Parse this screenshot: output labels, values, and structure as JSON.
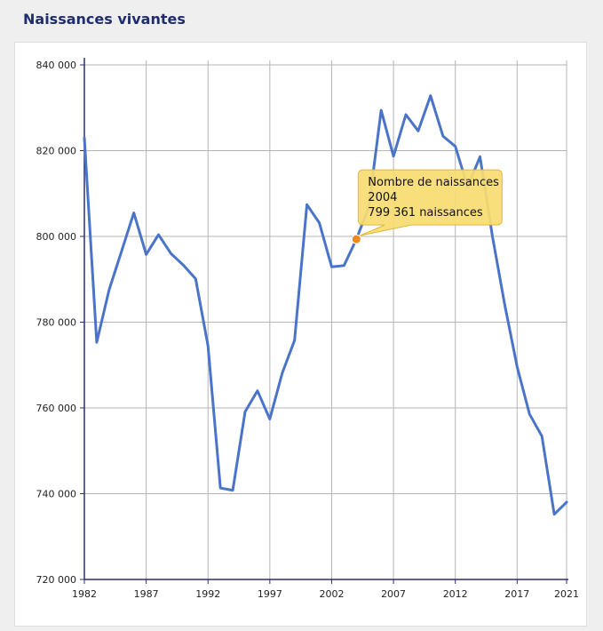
{
  "title": "Naissances vivantes",
  "colors": {
    "line": "#4a74c9",
    "grid": "#b5b5b5",
    "axis": "#2b2e7a",
    "highlight": "#ee8a1b",
    "tooltip_bg": "#f7dc70",
    "tooltip_border": "#e0b833"
  },
  "chart_data": {
    "type": "line",
    "title": "Naissances vivantes",
    "xlabel": "",
    "ylabel": "",
    "x": [
      1982,
      1983,
      1984,
      1985,
      1986,
      1987,
      1988,
      1989,
      1990,
      1991,
      1992,
      1993,
      1994,
      1995,
      1996,
      1997,
      1998,
      1999,
      2000,
      2001,
      2002,
      2003,
      2004,
      2005,
      2006,
      2007,
      2008,
      2009,
      2010,
      2011,
      2012,
      2013,
      2014,
      2015,
      2016,
      2017,
      2018,
      2019,
      2020,
      2021
    ],
    "series": [
      {
        "name": "Nombre de naissances",
        "values": [
          823000,
          775300,
          787500,
          796500,
          805500,
          795800,
          800400,
          796000,
          793300,
          790100,
          774500,
          741300,
          740800,
          759100,
          764000,
          757400,
          768100,
          775800,
          807400,
          803200,
          792900,
          793200,
          799361,
          806800,
          829400,
          818700,
          828400,
          824600,
          832800,
          823400,
          821000,
          811500,
          818600,
          800000,
          784000,
          769600,
          758600,
          753400,
          735200,
          738000
        ]
      }
    ],
    "xlim": [
      1982,
      2021
    ],
    "ylim": [
      720000,
      840000
    ],
    "x_ticks": [
      1982,
      1987,
      1992,
      1997,
      2002,
      2007,
      2012,
      2017,
      2021
    ],
    "x_tick_labels": [
      "1982",
      "1987",
      "1992",
      "1997",
      "2002",
      "2007",
      "2012",
      "2017",
      "2021"
    ],
    "y_ticks": [
      720000,
      740000,
      760000,
      780000,
      800000,
      820000,
      840000
    ],
    "y_tick_labels": [
      "720 000",
      "740 000",
      "760 000",
      "780 000",
      "800 000",
      "820 000",
      "840 000"
    ],
    "grid": true,
    "tooltip": {
      "index": 22,
      "line1": "Nombre de naissances",
      "line2": "2004",
      "line3": "799 361 naissances"
    }
  }
}
